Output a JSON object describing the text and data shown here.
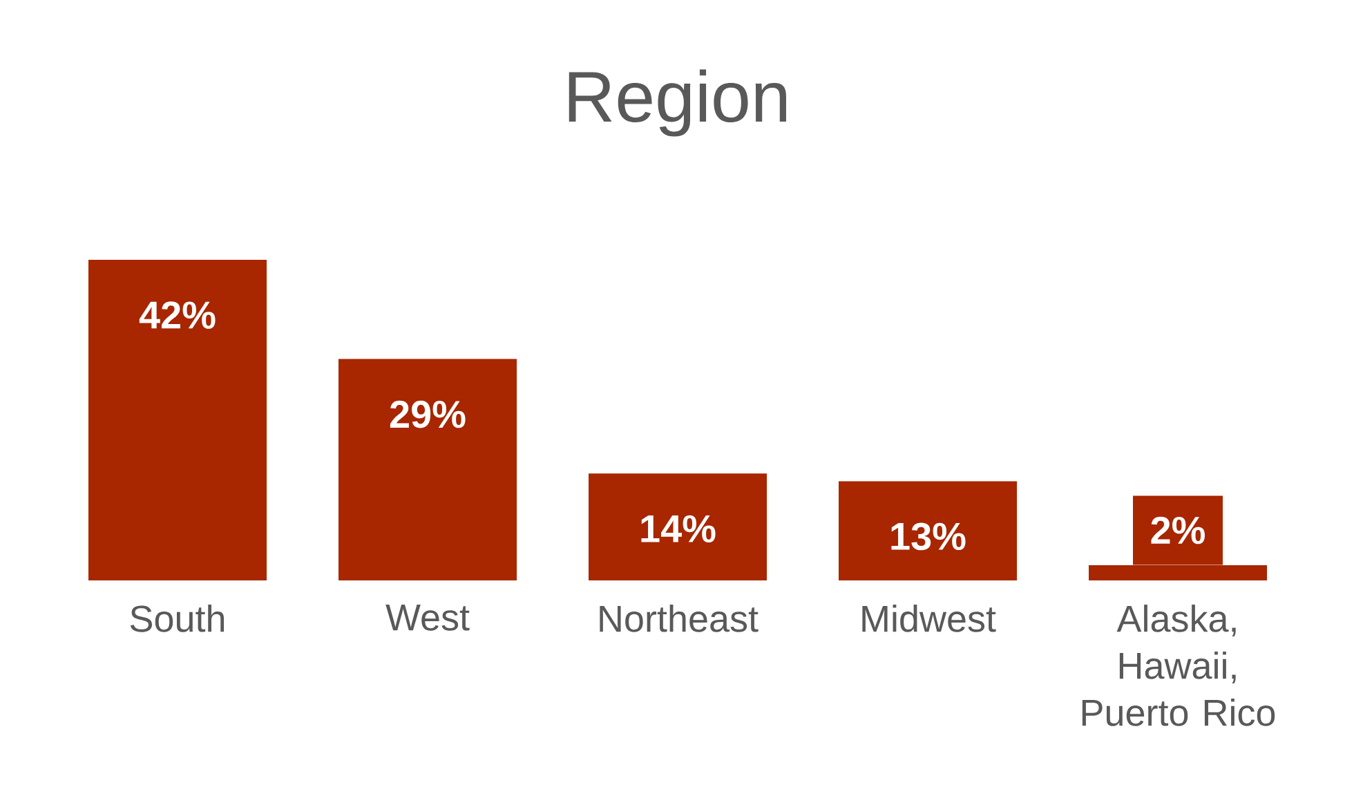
{
  "chart_data": {
    "type": "bar",
    "title": "Region",
    "categories": [
      "South",
      "West",
      "Northeast",
      "Midwest",
      "Alaska, Hawaii, Puerto Rico"
    ],
    "values": [
      42,
      29,
      14,
      13,
      2
    ],
    "value_labels": [
      "42%",
      "29%",
      "14%",
      "13%",
      "2%"
    ],
    "color": "#a82600",
    "tick_labels": "x"
  }
}
